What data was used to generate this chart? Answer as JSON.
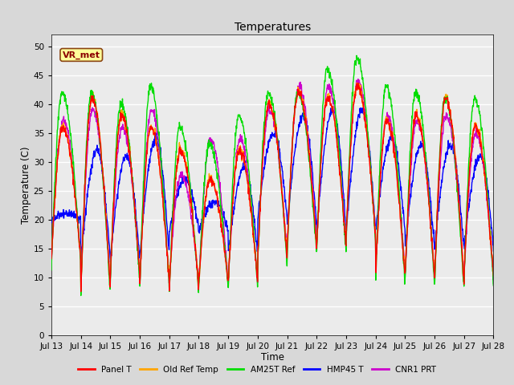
{
  "title": "Temperatures",
  "xlabel": "Time",
  "ylabel": "Temperature (C)",
  "annotation": "VR_met",
  "ylim": [
    0,
    52
  ],
  "yticks": [
    0,
    5,
    10,
    15,
    20,
    25,
    30,
    35,
    40,
    45,
    50
  ],
  "x_tick_labels": [
    "Jul 13",
    "Jul 14",
    "Jul 15",
    "Jul 16",
    "Jul 17",
    "Jul 18",
    "Jul 19",
    "Jul 20",
    "Jul 21",
    "Jul 22",
    "Jul 23",
    "Jul 24",
    "Jul 25",
    "Jul 26",
    "Jul 27",
    "Jul 28"
  ],
  "legend_entries": [
    "Panel T",
    "Old Ref Temp",
    "AM25T Ref",
    "HMP45 T",
    "CNR1 PRT"
  ],
  "legend_colors": [
    "#ff0000",
    "#ffa500",
    "#00dd00",
    "#0000ff",
    "#cc00cc"
  ],
  "line_colors": {
    "panel_t": "#ff0000",
    "old_ref": "#ffa500",
    "am25t": "#00dd00",
    "hmp45": "#0000ff",
    "cnr1": "#cc00cc"
  },
  "background_color": "#d8d8d8",
  "plot_background": "#ebebeb",
  "grid_color": "#ffffff",
  "num_points": 1500
}
